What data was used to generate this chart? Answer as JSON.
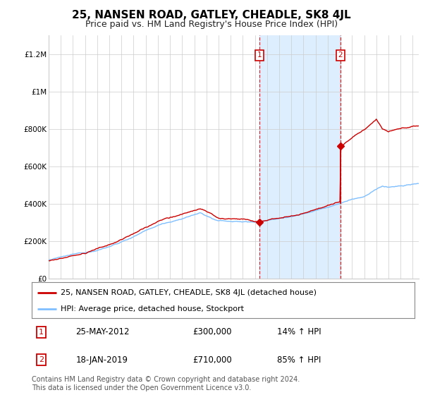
{
  "title": "25, NANSEN ROAD, GATLEY, CHEADLE, SK8 4JL",
  "subtitle": "Price paid vs. HM Land Registry's House Price Index (HPI)",
  "ylabel_ticks": [
    "£0",
    "£200K",
    "£400K",
    "£600K",
    "£800K",
    "£1M",
    "£1.2M"
  ],
  "ylim": [
    0,
    1300000
  ],
  "yticks": [
    0,
    200000,
    400000,
    600000,
    800000,
    1000000,
    1200000
  ],
  "xlim_start": 1995.0,
  "xlim_end": 2025.5,
  "hpi_color": "#7fbfff",
  "price_color": "#cc0000",
  "sale1_date": 2012.38,
  "sale1_price": 300000,
  "sale1_label": "1",
  "sale2_date": 2019.04,
  "sale2_price": 710000,
  "sale2_label": "2",
  "annotation1_text": "25-MAY-2012",
  "annotation1_price": "£300,000",
  "annotation1_hpi": "14% ↑ HPI",
  "annotation2_text": "18-JAN-2019",
  "annotation2_price": "£710,000",
  "annotation2_hpi": "85% ↑ HPI",
  "legend_line1": "25, NANSEN ROAD, GATLEY, CHEADLE, SK8 4JL (detached house)",
  "legend_line2": "HPI: Average price, detached house, Stockport",
  "footer": "Contains HM Land Registry data © Crown copyright and database right 2024.\nThis data is licensed under the Open Government Licence v3.0.",
  "background_color": "#ffffff",
  "plot_bg_color": "#ffffff",
  "shaded_color": "#ddeeff",
  "grid_color": "#cccccc",
  "title_fontsize": 11,
  "subtitle_fontsize": 9,
  "tick_fontsize": 7.5,
  "legend_fontsize": 8,
  "annotation_fontsize": 8.5,
  "footer_fontsize": 7
}
